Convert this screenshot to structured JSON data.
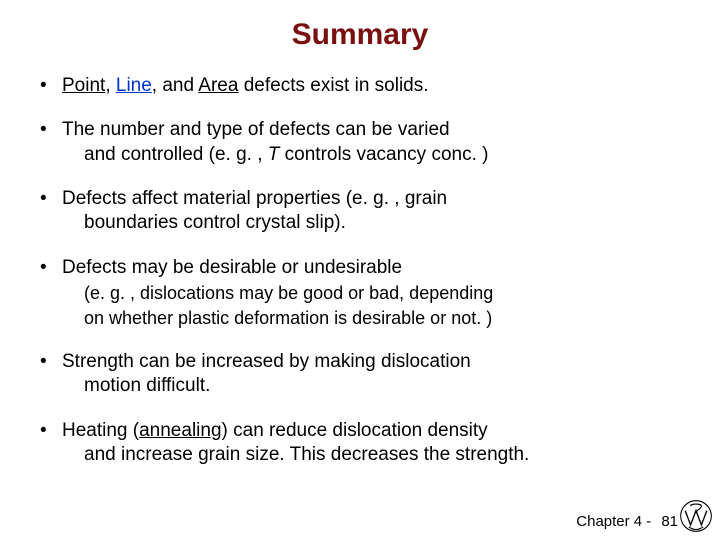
{
  "title": "Summary",
  "bullets": [
    {
      "segments": [
        {
          "t": "Point",
          "cls": "u"
        },
        {
          "t": ", "
        },
        {
          "t": "Line",
          "cls": "u-link"
        },
        {
          "t": ", and "
        },
        {
          "t": "Area",
          "cls": "u"
        },
        {
          "t": " defects exist in solids."
        }
      ]
    },
    {
      "segments": [
        {
          "t": "The number and type of defects can be varied"
        }
      ],
      "indent": [
        {
          "t": "and controlled (e. g. , "
        },
        {
          "t": "T",
          "cls": "italic"
        },
        {
          "t": " controls vacancy conc. )"
        }
      ]
    },
    {
      "segments": [
        {
          "t": "Defects affect material properties (e. g. , grain"
        }
      ],
      "indent": [
        {
          "t": "boundaries control crystal slip)."
        }
      ]
    },
    {
      "segments": [
        {
          "t": "Defects may be desirable or undesirable"
        }
      ],
      "sub": [
        [
          {
            "t": "(e. g. , dislocations may be good or bad, depending"
          }
        ],
        [
          {
            "t": "on whether plastic deformation is desirable or not. )"
          }
        ]
      ]
    },
    {
      "segments": [
        {
          "t": "Strength can be increased by making dislocation"
        }
      ],
      "indent": [
        {
          "t": "motion difficult."
        }
      ]
    },
    {
      "segments": [
        {
          "t": "Heating ("
        },
        {
          "t": "annealing",
          "cls": "u"
        },
        {
          "t": ") can reduce dislocation density"
        }
      ],
      "indent": [
        {
          "t": "and increase grain size. This decreases the strength."
        }
      ]
    }
  ],
  "footer": {
    "chapter": "Chapter 4 -",
    "page": "81"
  },
  "logo_stroke": "#000000"
}
